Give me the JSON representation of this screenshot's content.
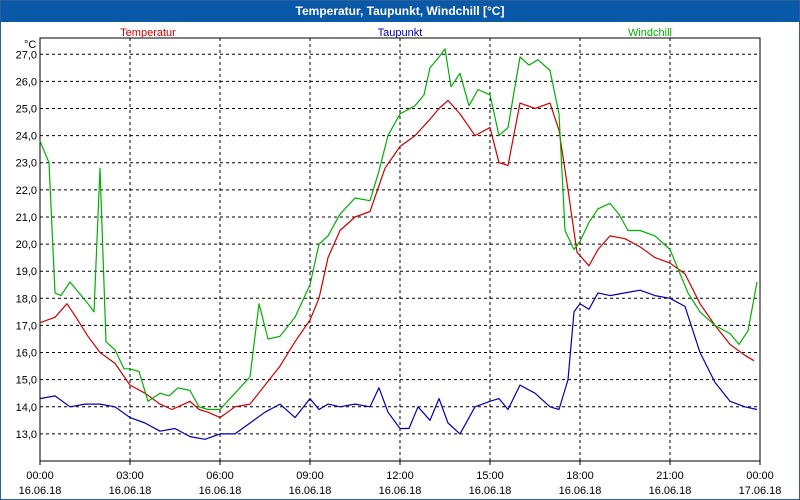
{
  "window": {
    "title": "Temperatur, Taupunkt, Windchill [°C]"
  },
  "chart_data": {
    "type": "line",
    "title": "Temperatur, Taupunkt, Windchill [°C]",
    "ylabel": "°C",
    "ylim": [
      12.0,
      27.6
    ],
    "xlim": [
      0,
      24
    ],
    "grid": true,
    "yticks": [
      "13,0",
      "14,0",
      "15,0",
      "16,0",
      "17,0",
      "18,0",
      "19,0",
      "20,0",
      "21,0",
      "22,0",
      "23,0",
      "24,0",
      "25,0",
      "26,0",
      "27,0"
    ],
    "xticks": [
      {
        "h": 0,
        "time": "00:00",
        "date": "16.06.18"
      },
      {
        "h": 3,
        "time": "03:00",
        "date": "16.06.18"
      },
      {
        "h": 6,
        "time": "06:00",
        "date": "16.06.18"
      },
      {
        "h": 9,
        "time": "09:00",
        "date": "16.06.18"
      },
      {
        "h": 12,
        "time": "12:00",
        "date": "16.06.18"
      },
      {
        "h": 15,
        "time": "15:00",
        "date": "16.06.18"
      },
      {
        "h": 18,
        "time": "18:00",
        "date": "16.06.18"
      },
      {
        "h": 21,
        "time": "21:00",
        "date": "16.06.18"
      },
      {
        "h": 24,
        "time": "00:00",
        "date": "17.06.18"
      }
    ],
    "series": [
      {
        "name": "Temperatur",
        "color": "#d00000",
        "legend_pos": "left",
        "x": [
          0,
          0.5,
          0.9,
          1.2,
          1.6,
          2.0,
          2.5,
          3.0,
          3.5,
          4.0,
          4.4,
          4.8,
          5.0,
          5.3,
          5.6,
          6.0,
          6.5,
          7.0,
          7.5,
          8.0,
          8.5,
          9.0,
          9.3,
          9.6,
          10.0,
          10.5,
          11.0,
          11.5,
          12.0,
          12.5,
          13.0,
          13.3,
          13.6,
          14.0,
          14.5,
          15.0,
          15.3,
          15.6,
          16.0,
          16.5,
          17.0,
          17.3,
          17.6,
          17.9,
          18.3,
          18.6,
          19.0,
          19.5,
          20.0,
          20.5,
          21.0,
          21.5,
          22.0,
          22.5,
          23.0,
          23.5,
          23.8
        ],
        "y": [
          17.1,
          17.3,
          17.8,
          17.3,
          16.6,
          16.0,
          15.6,
          14.8,
          14.5,
          14.1,
          13.9,
          14.1,
          14.2,
          13.9,
          13.8,
          13.6,
          14.0,
          14.1,
          14.8,
          15.5,
          16.4,
          17.2,
          18.0,
          19.5,
          20.5,
          21.0,
          21.2,
          22.8,
          23.6,
          24.0,
          24.6,
          25.0,
          25.3,
          24.8,
          24.0,
          24.3,
          23.0,
          22.9,
          25.2,
          25.0,
          25.2,
          24.2,
          22.0,
          19.7,
          19.2,
          19.8,
          20.3,
          20.2,
          19.9,
          19.5,
          19.3,
          18.9,
          17.8,
          17.0,
          16.3,
          15.9,
          15.7
        ]
      },
      {
        "name": "Taupunkt",
        "color": "#0000b0",
        "legend_pos": "center",
        "x": [
          0,
          0.5,
          1.0,
          1.5,
          2.0,
          2.5,
          3.0,
          3.5,
          4.0,
          4.5,
          5.0,
          5.5,
          6.0,
          6.5,
          7.0,
          7.5,
          8.0,
          8.5,
          9.0,
          9.3,
          9.6,
          10.0,
          10.5,
          11.0,
          11.3,
          11.6,
          12.0,
          12.3,
          12.6,
          13.0,
          13.3,
          13.6,
          14.0,
          14.5,
          15.0,
          15.3,
          15.6,
          16.0,
          16.5,
          17.0,
          17.3,
          17.6,
          17.8,
          18.0,
          18.3,
          18.6,
          19.0,
          19.5,
          20.0,
          20.5,
          21.0,
          21.5,
          22.0,
          22.5,
          23.0,
          23.5,
          23.9
        ],
        "y": [
          14.3,
          14.4,
          14.0,
          14.1,
          14.1,
          14.0,
          13.6,
          13.4,
          13.1,
          13.2,
          12.9,
          12.8,
          13.0,
          13.0,
          13.4,
          13.8,
          14.1,
          13.6,
          14.3,
          13.9,
          14.1,
          14.0,
          14.1,
          14.0,
          14.7,
          13.8,
          13.2,
          13.2,
          14.0,
          13.5,
          14.3,
          13.4,
          13.0,
          14.0,
          14.2,
          14.3,
          13.9,
          14.8,
          14.5,
          14.0,
          13.9,
          15.0,
          17.5,
          17.8,
          17.6,
          18.2,
          18.1,
          18.2,
          18.3,
          18.1,
          18.0,
          17.7,
          16.0,
          14.9,
          14.2,
          14.0,
          13.9
        ]
      },
      {
        "name": "Windchill",
        "color": "#00b000",
        "legend_pos": "right",
        "x": [
          0,
          0.3,
          0.5,
          0.7,
          1.0,
          1.3,
          1.6,
          1.8,
          2.0,
          2.2,
          2.5,
          2.8,
          3.0,
          3.3,
          3.6,
          4.0,
          4.3,
          4.6,
          5.0,
          5.3,
          5.6,
          6.0,
          6.5,
          7.0,
          7.3,
          7.6,
          8.0,
          8.5,
          9.0,
          9.3,
          9.6,
          10.0,
          10.5,
          11.0,
          11.3,
          11.6,
          12.0,
          12.5,
          12.8,
          13.0,
          13.3,
          13.5,
          13.7,
          14.0,
          14.3,
          14.6,
          15.0,
          15.3,
          15.6,
          16.0,
          16.3,
          16.6,
          17.0,
          17.3,
          17.5,
          17.8,
          18.0,
          18.3,
          18.6,
          19.0,
          19.3,
          19.6,
          20.0,
          20.5,
          21.0,
          21.3,
          21.6,
          22.0,
          22.5,
          23.0,
          23.3,
          23.6,
          23.9
        ],
        "y": [
          23.8,
          23.0,
          18.2,
          18.1,
          18.6,
          18.2,
          17.8,
          17.5,
          22.8,
          16.4,
          16.1,
          15.4,
          15.4,
          15.3,
          14.2,
          14.5,
          14.4,
          14.7,
          14.6,
          14.0,
          13.9,
          13.9,
          14.5,
          15.1,
          17.8,
          16.5,
          16.6,
          17.3,
          18.5,
          20.0,
          20.3,
          21.1,
          21.7,
          21.6,
          22.7,
          24.0,
          24.8,
          25.1,
          25.5,
          26.5,
          26.9,
          27.2,
          25.8,
          26.3,
          25.1,
          25.7,
          25.5,
          24.0,
          24.3,
          26.9,
          26.6,
          26.8,
          26.4,
          24.8,
          20.5,
          19.8,
          20.1,
          20.8,
          21.3,
          21.5,
          21.1,
          20.5,
          20.5,
          20.3,
          19.8,
          19.0,
          18.2,
          17.5,
          17.0,
          16.7,
          16.3,
          16.8,
          18.6
        ]
      }
    ]
  }
}
